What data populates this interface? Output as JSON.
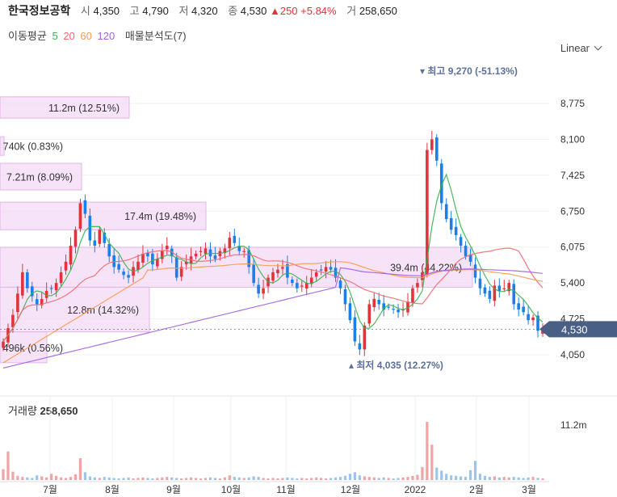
{
  "header": {
    "name": "한국정보공학",
    "open_label": "시",
    "open": "4,350",
    "high_label": "고",
    "high": "4,790",
    "low_label": "저",
    "low": "4,320",
    "close_label": "종",
    "close": "4,530",
    "change": "▲250 +5.84%",
    "volume_label": "거",
    "volume": "258,650"
  },
  "ma_legend": {
    "title": "이동평균",
    "p5": "5",
    "p20": "20",
    "p60": "60",
    "p120": "120",
    "extra": "매물분석도(7)"
  },
  "scale_button": "Linear",
  "volume_panel": {
    "label": "거래량",
    "value": "258,650",
    "tick": "11.2m"
  },
  "colors": {
    "up": "#e0343a",
    "down": "#1a7fe8",
    "ma5": "#37b24d",
    "ma20": "#f06c6c",
    "ma60": "#f59b4e",
    "ma120": "#a061e0",
    "volume_profile": "#f3d9f6",
    "volume_profile_border": "#e3b5ea",
    "price_tag": "#4a5f86"
  },
  "chart_data": {
    "type": "candlestick",
    "y_ticks": [
      "8,775",
      "8,100",
      "7,425",
      "6,750",
      "6,075",
      "5,400",
      "4,725",
      "4,050"
    ],
    "x_ticks": [
      "7월",
      "8월",
      "9월",
      "10월",
      "11월",
      "12월",
      "2022",
      "2월",
      "3월"
    ],
    "current_price": "4,530",
    "high_annotation": "최고 9,270 (-51.13%)",
    "low_annotation": "최저 4,035 (12.27%)",
    "volume_profile": [
      {
        "price_low": 8500,
        "price_high": 8900,
        "label": "11.2m (12.51%)"
      },
      {
        "price_low": 7800,
        "price_high": 8150,
        "label": "740k (0.83%)"
      },
      {
        "price_low": 7150,
        "price_high": 7650,
        "label": "7.21m (8.09%)"
      },
      {
        "price_low": 6400,
        "price_high": 6920,
        "label": "17.4m (19.48%)"
      },
      {
        "price_low": 5320,
        "price_high": 6070,
        "label": "39.4m (44.22%)"
      },
      {
        "price_low": 4480,
        "price_high": 5320,
        "label": "12.8m (14.32%)"
      },
      {
        "price_low": 3900,
        "price_high": 4480,
        "label": "496k (0.56%)"
      }
    ],
    "series_close": [
      4300,
      4550,
      4800,
      5200,
      5600,
      5300,
      5150,
      5000,
      5100,
      5250,
      5300,
      5400,
      5600,
      5800,
      6100,
      6400,
      6900,
      6700,
      6200,
      6100,
      6400,
      6150,
      5900,
      5700,
      5650,
      5550,
      5500,
      5700,
      5800,
      5950,
      5900,
      5750,
      5850,
      6000,
      6100,
      5900,
      5500,
      5700,
      5800,
      5900,
      5950,
      6000,
      6050,
      5900,
      5850,
      6000,
      6050,
      6250,
      6150,
      6000,
      6000,
      5700,
      5400,
      5200,
      5300,
      5500,
      5600,
      5650,
      5700,
      5500,
      5400,
      5300,
      5350,
      5400,
      5500,
      5600,
      5650,
      5700,
      5650,
      5500,
      5300,
      5000,
      4700,
      4300,
      4150,
      4600,
      5000,
      5100,
      5000,
      4900,
      4950,
      4900,
      4850,
      4900,
      5050,
      5300,
      5400,
      5600,
      7900,
      8100,
      7700,
      6900,
      6600,
      6400,
      6300,
      6100,
      5900,
      5800,
      5500,
      5300,
      5200,
      5100,
      5350,
      5250,
      5300,
      5400,
      5000,
      4900,
      4850,
      4700,
      4750,
      4500,
      4530
    ],
    "volume_series": [
      2.1,
      5.5,
      1.6,
      0.8,
      0.6,
      0.5,
      0.4,
      0.9,
      0.7,
      0.5,
      1.2,
      0.8,
      0.5,
      0.4,
      0.6,
      1.1,
      4.2,
      1.5,
      0.7,
      0.5,
      0.4,
      0.6,
      0.5,
      0.4,
      0.3,
      0.4,
      0.5,
      0.3,
      0.4,
      0.5,
      0.4,
      0.3,
      0.4,
      0.5,
      0.6,
      0.5,
      0.4,
      0.3,
      0.4,
      0.5,
      0.4,
      0.3,
      0.4,
      0.5,
      0.4,
      0.3,
      0.5,
      0.9,
      0.6,
      0.5,
      0.4,
      0.5,
      0.7,
      0.6,
      0.4,
      0.3,
      0.4,
      0.3,
      0.4,
      0.5,
      0.4,
      0.3,
      0.4,
      0.3,
      0.4,
      0.5,
      0.4,
      0.3,
      0.4,
      0.5,
      0.6,
      0.8,
      1.2,
      1.5,
      0.9,
      0.7,
      0.6,
      0.5,
      0.4,
      0.5,
      0.4,
      0.3,
      0.4,
      0.5,
      0.6,
      0.8,
      1.0,
      2.5,
      11.2,
      6.8,
      2.4,
      1.8,
      1.2,
      0.9,
      0.8,
      0.7,
      0.6,
      1.9,
      3.7,
      1.2,
      0.8,
      0.6,
      0.7,
      0.5,
      0.6,
      0.5,
      0.6,
      0.5,
      0.4,
      0.5,
      0.6,
      0.4,
      0.3
    ]
  }
}
